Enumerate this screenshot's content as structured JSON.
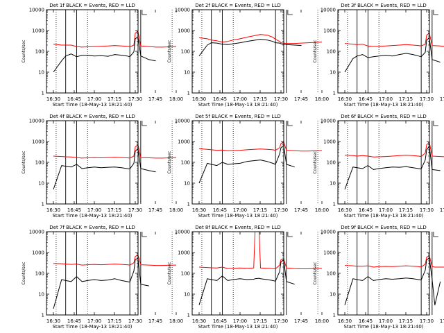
{
  "common": {
    "title_suffix": " BLACK = Events, RED = LLD",
    "xlabel": "Start Time (18-May-13 18:21:40)",
    "ylabel": "Counts/sec",
    "x_ticks": [
      "16:30",
      "16:45",
      "17:00",
      "17:15",
      "17:30",
      "17:45",
      "18:00"
    ],
    "y_ticks": [
      "1",
      "10",
      "100",
      "1000",
      "10000"
    ],
    "event_color": "#000000",
    "lld_color": "#ff0000",
    "solid_markers": [
      "16:39",
      "16:47",
      "17:26",
      "17:34"
    ],
    "dotted_markers": [
      "16:32",
      "16:55",
      "17:57"
    ]
  },
  "chart_data": [
    {
      "type": "line",
      "title": "Det 1f BLACK = Events, RED = LLD",
      "xlabel": "Start Time (18-May-13 18:21:40)",
      "ylabel": "Counts/sec",
      "xlim": [
        "16:20",
        "18:05"
      ],
      "ylim": [
        1,
        10000
      ],
      "log_y": true,
      "grid": false,
      "x": [
        "16:30",
        "16:36",
        "16:39",
        "16:43",
        "16:47",
        "16:51",
        "16:55",
        "17:00",
        "17:05",
        "17:10",
        "17:15",
        "17:20",
        "17:24",
        "17:26",
        "17:29",
        "17:30",
        "17:32",
        "17:34",
        "17:40",
        "17:45",
        "17:50",
        "17:55",
        "18:00"
      ],
      "series": [
        {
          "name": "Events",
          "color": "#000000",
          "values": [
            10,
            35,
            60,
            75,
            55,
            65,
            65,
            60,
            62,
            58,
            70,
            65,
            60,
            55,
            95,
            400,
            500,
            60,
            40,
            35,
            null,
            null,
            null
          ]
        },
        {
          "name": "LLD",
          "color": "#ff0000",
          "values": [
            220,
            200,
            200,
            200,
            170,
            160,
            165,
            170,
            175,
            180,
            190,
            180,
            175,
            165,
            200,
            750,
            900,
            180,
            170,
            160,
            160,
            165,
            170
          ]
        }
      ]
    },
    {
      "type": "line",
      "title": "Det 2f BLACK = Events, RED = LLD",
      "xlabel": "Start Time (18-May-13 18:21:40)",
      "ylabel": "Counts/sec",
      "xlim": [
        "16:20",
        "18:05"
      ],
      "ylim": [
        1,
        10000
      ],
      "log_y": true,
      "grid": false,
      "x": [
        "16:30",
        "16:36",
        "16:39",
        "16:43",
        "16:47",
        "16:51",
        "16:55",
        "17:00",
        "17:05",
        "17:10",
        "17:15",
        "17:20",
        "17:24",
        "17:26",
        "17:29",
        "17:30",
        "17:32",
        "17:34",
        "17:40",
        "17:45",
        "17:50",
        "17:55",
        "18:00"
      ],
      "series": [
        {
          "name": "Events",
          "color": "#000000",
          "values": [
            60,
            200,
            260,
            250,
            220,
            210,
            230,
            260,
            300,
            340,
            380,
            350,
            300,
            260,
            250,
            230,
            220,
            210,
            200,
            190,
            null,
            null,
            null
          ]
        },
        {
          "name": "LLD",
          "color": "#ff0000",
          "values": [
            450,
            400,
            350,
            320,
            280,
            300,
            350,
            400,
            480,
            560,
            650,
            600,
            480,
            380,
            300,
            260,
            250,
            240,
            240,
            250,
            260,
            270,
            280
          ]
        }
      ]
    },
    {
      "type": "line",
      "title": "Det 3f BLACK = Events, RED = LLD",
      "xlabel": "Start Time (18-May-13 18:21:40)",
      "ylabel": "Counts/sec",
      "xlim": [
        "16:20",
        "18:05"
      ],
      "ylim": [
        1,
        10000
      ],
      "log_y": true,
      "grid": false,
      "x": [
        "16:30",
        "16:36",
        "16:39",
        "16:43",
        "16:47",
        "16:51",
        "16:55",
        "17:00",
        "17:05",
        "17:10",
        "17:15",
        "17:20",
        "17:24",
        "17:26",
        "17:29",
        "17:30",
        "17:32",
        "17:34",
        "17:40",
        "17:45",
        "17:50",
        "17:55",
        "18:00"
      ],
      "series": [
        {
          "name": "Events",
          "color": "#000000",
          "values": [
            10,
            45,
            60,
            70,
            50,
            55,
            60,
            65,
            60,
            70,
            80,
            70,
            60,
            55,
            90,
            350,
            450,
            40,
            30,
            null,
            null,
            null,
            null
          ]
        },
        {
          "name": "LLD",
          "color": "#ff0000",
          "values": [
            240,
            220,
            210,
            220,
            180,
            170,
            175,
            180,
            190,
            200,
            210,
            200,
            190,
            180,
            220,
            600,
            750,
            190,
            180,
            170,
            170,
            175,
            180
          ]
        }
      ]
    },
    {
      "type": "line",
      "title": "Det 4f BLACK = Events, RED = LLD",
      "xlabel": "Start Time (18-May-13 18:21:40)",
      "ylabel": "Counts/sec",
      "xlim": [
        "16:20",
        "18:05"
      ],
      "ylim": [
        1,
        10000
      ],
      "log_y": true,
      "grid": false,
      "x": [
        "16:30",
        "16:36",
        "16:39",
        "16:43",
        "16:47",
        "16:51",
        "16:55",
        "17:00",
        "17:05",
        "17:10",
        "17:15",
        "17:20",
        "17:24",
        "17:26",
        "17:29",
        "17:30",
        "17:32",
        "17:34",
        "17:40",
        "17:45",
        "17:50",
        "17:55",
        "18:00"
      ],
      "series": [
        {
          "name": "Events",
          "color": "#000000",
          "values": [
            5,
            70,
            65,
            60,
            80,
            50,
            55,
            60,
            55,
            58,
            60,
            55,
            50,
            48,
            90,
            350,
            450,
            50,
            40,
            35,
            null,
            null,
            null
          ]
        },
        {
          "name": "LLD",
          "color": "#ff0000",
          "values": [
            200,
            190,
            185,
            180,
            170,
            160,
            165,
            170,
            165,
            170,
            175,
            170,
            165,
            160,
            200,
            550,
            700,
            170,
            165,
            160,
            160,
            165,
            170
          ]
        }
      ]
    },
    {
      "type": "line",
      "title": "Det 5f BLACK = Events, RED = LLD",
      "xlabel": "Start Time (18-May-13 18:21:40)",
      "ylabel": "Counts/sec",
      "xlim": [
        "16:20",
        "18:05"
      ],
      "ylim": [
        1,
        10000
      ],
      "log_y": true,
      "grid": false,
      "x": [
        "16:30",
        "16:36",
        "16:39",
        "16:43",
        "16:47",
        "16:51",
        "16:55",
        "17:00",
        "17:05",
        "17:10",
        "17:15",
        "17:20",
        "17:24",
        "17:26",
        "17:29",
        "17:30",
        "17:32",
        "17:34",
        "17:40",
        "17:45",
        "17:50",
        "17:55",
        "18:00"
      ],
      "series": [
        {
          "name": "Events",
          "color": "#000000",
          "values": [
            10,
            90,
            80,
            70,
            100,
            80,
            85,
            90,
            110,
            120,
            130,
            110,
            90,
            80,
            250,
            500,
            650,
            80,
            60,
            null,
            null,
            null,
            null
          ]
        },
        {
          "name": "LLD",
          "color": "#ff0000",
          "values": [
            450,
            420,
            400,
            380,
            390,
            360,
            370,
            380,
            400,
            420,
            440,
            420,
            400,
            380,
            500,
            800,
            950,
            380,
            360,
            350,
            350,
            360,
            370
          ]
        }
      ]
    },
    {
      "type": "line",
      "title": "Det 6f BLACK = Events, RED = LLD",
      "xlabel": "Start Time (18-May-13 18:21:40)",
      "ylabel": "Counts/sec",
      "xlim": [
        "16:20",
        "18:05"
      ],
      "ylim": [
        1,
        10000
      ],
      "log_y": true,
      "grid": false,
      "x": [
        "16:30",
        "16:36",
        "16:39",
        "16:43",
        "16:47",
        "16:51",
        "16:55",
        "17:00",
        "17:05",
        "17:10",
        "17:15",
        "17:20",
        "17:24",
        "17:26",
        "17:29",
        "17:30",
        "17:32",
        "17:34",
        "17:40",
        "17:45",
        "17:50",
        "17:55",
        "18:00"
      ],
      "series": [
        {
          "name": "Events",
          "color": "#000000",
          "values": [
            5,
            60,
            55,
            50,
            70,
            45,
            50,
            55,
            60,
            58,
            62,
            55,
            50,
            48,
            130,
            400,
            600,
            45,
            40,
            null,
            null,
            null,
            null
          ]
        },
        {
          "name": "LLD",
          "color": "#ff0000",
          "values": [
            220,
            210,
            200,
            210,
            200,
            180,
            185,
            190,
            200,
            210,
            220,
            210,
            200,
            190,
            280,
            700,
            900,
            200,
            190,
            185,
            185,
            190,
            195
          ]
        }
      ]
    },
    {
      "type": "line",
      "title": "Det 7f BLACK = Events, RED = LLD",
      "xlabel": "Start Time (18-May-13 18:21:40)",
      "ylabel": "Counts/sec",
      "xlim": [
        "16:20",
        "18:05"
      ],
      "ylim": [
        1,
        10000
      ],
      "log_y": true,
      "grid": false,
      "x": [
        "16:30",
        "16:36",
        "16:39",
        "16:43",
        "16:47",
        "16:51",
        "16:55",
        "17:00",
        "17:05",
        "17:10",
        "17:15",
        "17:20",
        "17:24",
        "17:26",
        "17:29",
        "17:30",
        "17:32",
        "17:34",
        "17:40",
        "17:45",
        "17:50",
        "17:55",
        "18:00"
      ],
      "series": [
        {
          "name": "Events",
          "color": "#000000",
          "values": [
            2,
            50,
            45,
            40,
            70,
            40,
            45,
            50,
            45,
            48,
            55,
            45,
            40,
            38,
            130,
            450,
            550,
            30,
            25,
            null,
            null,
            null,
            null
          ]
        },
        {
          "name": "LLD",
          "color": "#ff0000",
          "values": [
            300,
            290,
            280,
            270,
            280,
            250,
            260,
            270,
            260,
            270,
            280,
            270,
            260,
            250,
            320,
            650,
            750,
            260,
            250,
            240,
            240,
            245,
            250
          ]
        }
      ]
    },
    {
      "type": "line",
      "title": "Det 8f BLACK = Events, RED = LLD",
      "xlabel": "Start Time (18-May-13 18:21:40)",
      "ylabel": "Counts/sec",
      "xlim": [
        "16:20",
        "18:05"
      ],
      "ylim": [
        1,
        10000
      ],
      "log_y": true,
      "grid": false,
      "x": [
        "16:30",
        "16:36",
        "16:39",
        "16:43",
        "16:47",
        "16:51",
        "16:55",
        "17:00",
        "17:05",
        "17:10",
        "17:11",
        "17:14",
        "17:15",
        "17:20",
        "17:24",
        "17:26",
        "17:29",
        "17:30",
        "17:32",
        "17:34",
        "17:40",
        "17:45",
        "17:50",
        "17:55",
        "18:00"
      ],
      "series": [
        {
          "name": "Events",
          "color": "#000000",
          "values": [
            3,
            55,
            50,
            45,
            75,
            45,
            50,
            55,
            50,
            52,
            55,
            58,
            55,
            50,
            45,
            42,
            120,
            350,
            450,
            40,
            30,
            null,
            null,
            null,
            null
          ]
        },
        {
          "name": "LLD",
          "color": "#ff0000",
          "values": [
            200,
            190,
            185,
            180,
            200,
            170,
            175,
            180,
            175,
            180,
            10000,
            10000,
            180,
            175,
            170,
            165,
            250,
            450,
            500,
            180,
            170,
            165,
            165,
            170,
            175
          ]
        }
      ]
    },
    {
      "type": "line",
      "title": "Det 9f BLACK = Events, RED = LLD",
      "xlabel": "Start Time (18-May-13 18:21:40)",
      "ylabel": "Counts/sec",
      "xlim": [
        "16:20",
        "18:05"
      ],
      "ylim": [
        1,
        10000
      ],
      "log_y": true,
      "grid": false,
      "x": [
        "16:30",
        "16:36",
        "16:39",
        "16:43",
        "16:47",
        "16:51",
        "16:55",
        "17:00",
        "17:05",
        "17:10",
        "17:15",
        "17:20",
        "17:24",
        "17:26",
        "17:29",
        "17:30",
        "17:32",
        "17:34",
        "17:36",
        "17:40",
        "17:45",
        "17:50",
        "17:55",
        "18:00"
      ],
      "series": [
        {
          "name": "Events",
          "color": "#000000",
          "values": [
            3,
            55,
            50,
            45,
            70,
            45,
            50,
            55,
            52,
            55,
            60,
            55,
            50,
            48,
            140,
            450,
            550,
            50,
            3,
            40,
            null,
            null,
            null,
            null
          ]
        },
        {
          "name": "LLD",
          "color": "#ff0000",
          "values": [
            240,
            230,
            220,
            220,
            230,
            200,
            210,
            215,
            210,
            220,
            230,
            220,
            210,
            200,
            280,
            600,
            700,
            210,
            200,
            200,
            200,
            205,
            210,
            215
          ]
        }
      ]
    }
  ]
}
